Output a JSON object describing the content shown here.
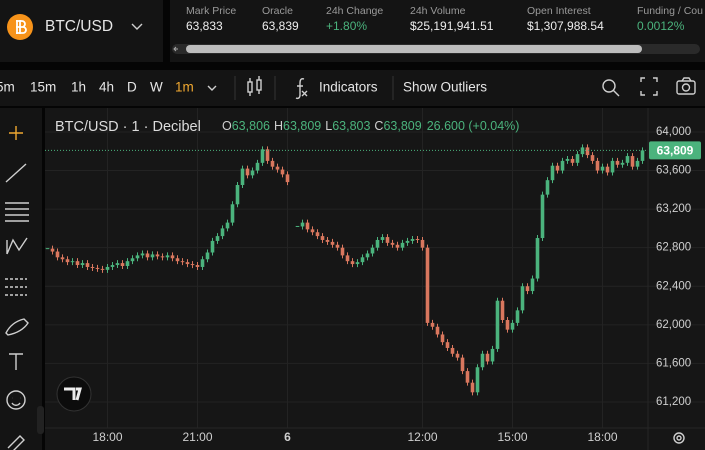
{
  "header": {
    "symbol": "BTC/USD",
    "stats": [
      {
        "label": "Mark Price",
        "value": "63,833"
      },
      {
        "label": "Oracle",
        "value": "63,839"
      },
      {
        "label": "24h Change",
        "value": "+1.80%"
      },
      {
        "label": "24h Volume",
        "value": "$25,191,941.51"
      },
      {
        "label": "Open Interest",
        "value": "$1,307,988.54"
      },
      {
        "label": "Funding / Cou",
        "value": "0.0012%"
      }
    ]
  },
  "toolbar": {
    "intervals": [
      "5m",
      "15m",
      "1h",
      "4h",
      "D",
      "W",
      "1m"
    ],
    "active_interval": "1m",
    "buttons": [
      "Indicators",
      "Show Outliers"
    ]
  },
  "chart_data": {
    "type": "candlestick",
    "title": "BTC/USD · 1 · Decibel",
    "legend": {
      "ohlc": [
        {
          "key": "O",
          "value": "63,806"
        },
        {
          "key": "H",
          "value": "63,809"
        },
        {
          "key": "L",
          "value": "63,803"
        },
        {
          "key": "C",
          "value": "63,809"
        }
      ],
      "change": "26.600 (+0.04%)"
    },
    "series": [
      {
        "name": "BTC/USD",
        "up_color": "#4bb37d",
        "down_color": "#d9775e",
        "values": [
          62790,
          62760,
          62700,
          62680,
          62650,
          62660,
          62620,
          62640,
          62600,
          62590,
          62580,
          62570,
          62600,
          62620,
          62640,
          62610,
          62660,
          62690,
          62720,
          62740,
          62700,
          62730,
          62710,
          62700,
          62720,
          62690,
          62660,
          62650,
          62630,
          62620,
          62600,
          62680,
          62750,
          62870,
          62920,
          63000,
          63060,
          63250,
          63450,
          63620,
          63550,
          63600,
          63680,
          63820,
          63700,
          63640,
          63610,
          63560,
          63480,
          null,
          63020,
          63060,
          62990,
          62960,
          62920,
          62880,
          62860,
          62830,
          62800,
          62720,
          62660,
          62630,
          62650,
          62700,
          62740,
          62800,
          62880,
          62910,
          62850,
          62830,
          62800,
          62850,
          62870,
          62890,
          62880,
          62800,
          62020,
          61980,
          61900,
          61820,
          61760,
          61700,
          61660,
          61520,
          61400,
          61300,
          61560,
          61700,
          61620,
          61750,
          62250,
          62050,
          61950,
          62020,
          62150,
          62400,
          62350,
          62480,
          62900,
          63350,
          63500,
          63650,
          63600,
          63700,
          63720,
          63680,
          63770,
          63840,
          63760,
          63700,
          63600,
          63640,
          63580,
          63700,
          63660,
          63680,
          63750,
          63640,
          63700,
          63809
        ]
      }
    ],
    "last_price": {
      "value": 63809,
      "label": "63,809"
    },
    "xlim": [
      -0.5,
      119.5
    ],
    "xticks": [
      {
        "value": 12,
        "label": "18:00"
      },
      {
        "value": 30,
        "label": "21:00"
      },
      {
        "value": 48,
        "label": "6"
      },
      {
        "value": 75,
        "label": "12:00"
      },
      {
        "value": 93,
        "label": "15:00"
      },
      {
        "value": 111,
        "label": "18:00"
      }
    ],
    "ylim": [
      60930,
      64207
    ],
    "yticks": [
      {
        "value": 64000,
        "label": "64,000"
      },
      {
        "value": 63600,
        "label": "63,600"
      },
      {
        "value": 63200,
        "label": "63,200"
      },
      {
        "value": 62800,
        "label": "62,800"
      },
      {
        "value": 62400,
        "label": "62,400"
      },
      {
        "value": 62000,
        "label": "62,000"
      },
      {
        "value": 61600,
        "label": "61,600"
      },
      {
        "value": 61200,
        "label": "61,200"
      }
    ],
    "grid": true
  }
}
